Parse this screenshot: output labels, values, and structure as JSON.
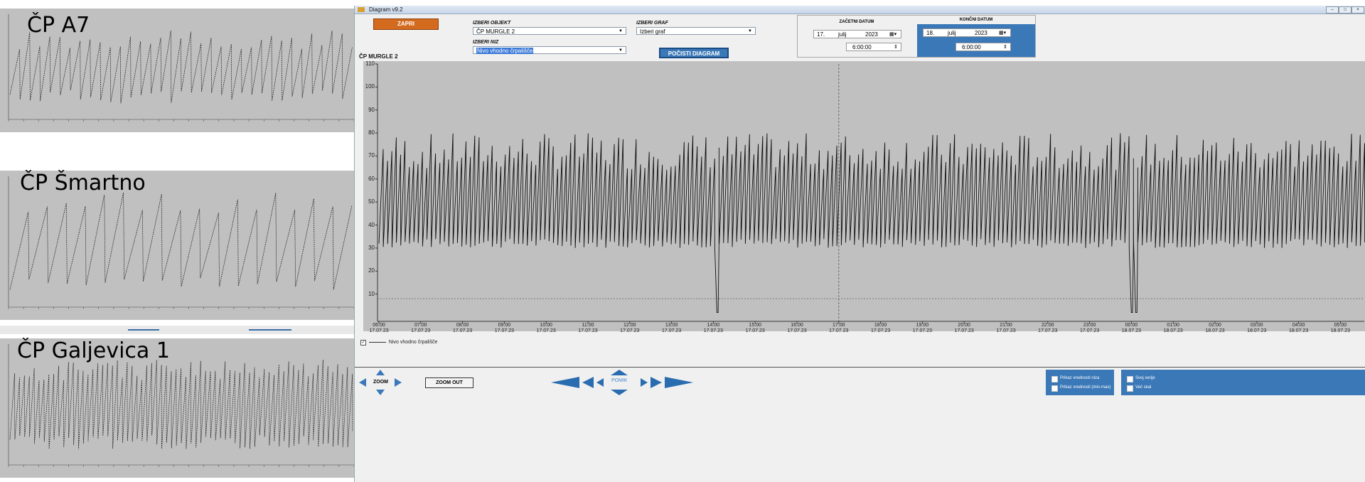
{
  "mini_charts": [
    {
      "title": "ČP A7"
    },
    {
      "title": "ČP Šmartno"
    },
    {
      "title": "ČP Galjevica 1"
    }
  ],
  "window": {
    "title": "Diagram v9.2",
    "close_button": "ZAPRI",
    "object_label": "IZBERI OBJEKT",
    "object_value": "ČP MURGLE 2",
    "graph_label": "IZBERI GRAF",
    "graph_value": "Izberi graf",
    "series_label": "IZBERI NIZ",
    "series_value": "Nivo vhodno črpališče",
    "clear_button": "POČISTI DIAGRAM",
    "selected_object": "ČP MURGLE 2"
  },
  "start_date": {
    "heading": "ZAČETNI DATUM",
    "day": "17.",
    "month": "julij",
    "year": "2023",
    "time": "6:00:00"
  },
  "end_date": {
    "heading": "KONČNI DATUM",
    "day": "18.",
    "month": "julij",
    "year": "2023",
    "time": "6:00:00"
  },
  "legend": {
    "label": "Nivo vhodno črpališče"
  },
  "controls": {
    "zoom_label": "ZOOM",
    "zoom_out": "ZOOM OUT",
    "pan_label": "POMIK"
  },
  "options": {
    "show_series_values": "Prikaz vrednosti niza",
    "show_minmax_values": "Prikaz vrednosti (min-max)",
    "own_series": "Svoj serije",
    "multi_scale": "Več skal"
  },
  "colors": {
    "plot_bg": "#c0c0c0",
    "accent_blue": "#3a78b8",
    "close_orange": "#d46a1e"
  },
  "chart_data": {
    "type": "line",
    "ylim": [
      0,
      110
    ],
    "yticks": [
      10,
      20,
      30,
      40,
      50,
      60,
      70,
      80,
      90,
      100,
      110
    ],
    "xticks": [
      {
        "time": "06:00",
        "date": "17.07.23"
      },
      {
        "time": "07:00",
        "date": "17.07.23"
      },
      {
        "time": "08:00",
        "date": "17.07.23"
      },
      {
        "time": "09:00",
        "date": "17.07.23"
      },
      {
        "time": "10:00",
        "date": "17.07.23"
      },
      {
        "time": "11:00",
        "date": "17.07.23"
      },
      {
        "time": "12:00",
        "date": "17.07.23"
      },
      {
        "time": "13:00",
        "date": "17.07.23"
      },
      {
        "time": "14:00",
        "date": "17.07.23"
      },
      {
        "time": "15:00",
        "date": "17.07.23"
      },
      {
        "time": "16:00",
        "date": "17.07.23"
      },
      {
        "time": "17:00",
        "date": "17.07.23"
      },
      {
        "time": "18:00",
        "date": "17.07.23"
      },
      {
        "time": "19:00",
        "date": "17.07.23"
      },
      {
        "time": "20:00",
        "date": "17.07.23"
      },
      {
        "time": "21:00",
        "date": "17.07.23"
      },
      {
        "time": "22:00",
        "date": "17.07.23"
      },
      {
        "time": "23:00",
        "date": "17.07.23"
      },
      {
        "time": "00:00",
        "date": "18.07.23"
      },
      {
        "time": "01:00",
        "date": "18.07.23"
      },
      {
        "time": "02:00",
        "date": "18.07.23"
      },
      {
        "time": "03:00",
        "date": "18.07.23"
      },
      {
        "time": "04:00",
        "date": "18.07.23"
      },
      {
        "time": "05:00",
        "date": "18.07.23"
      },
      {
        "time": "06:00",
        "date": "18.07.23"
      }
    ],
    "series": [
      {
        "name": "Nivo vhodno črpališče",
        "pattern": "sawtooth oscillating roughly between 30 and 80, with two drops near 0 at about 14:00 and 00:00",
        "min": 30,
        "max": 80,
        "drops": [
          "14:00",
          "00:00"
        ]
      }
    ],
    "reference_lines": [
      {
        "y": 8,
        "style": "dotted"
      }
    ],
    "cursor_time": "17:00",
    "grid": false
  }
}
